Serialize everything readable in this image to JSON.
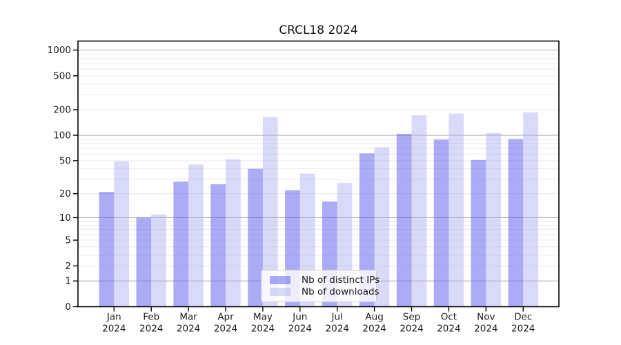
{
  "chart_data": {
    "type": "bar",
    "title": "CRCL18 2024",
    "categories": [
      "Jan",
      "Feb",
      "Mar",
      "Apr",
      "May",
      "Jun",
      "Jul",
      "Aug",
      "Sep",
      "Oct",
      "Nov",
      "Dec"
    ],
    "year": "2024",
    "series": [
      {
        "name": "Nb of distinct IPs",
        "color": "rgba(102,102,238,0.55)",
        "values": [
          21,
          10,
          28,
          26,
          40,
          22,
          16,
          61,
          104,
          89,
          51,
          90
        ]
      },
      {
        "name": "Nb of downloads",
        "color": "rgba(170,170,240,0.45)",
        "values": [
          49,
          11,
          45,
          52,
          164,
          35,
          27,
          72,
          172,
          180,
          106,
          186
        ]
      }
    ],
    "yticks": [
      0,
      1,
      2,
      5,
      10,
      20,
      50,
      100,
      200,
      500,
      1000
    ],
    "yscale": "log1p",
    "ylim": [
      0,
      1275
    ],
    "grid": true,
    "legend_position": "lower center",
    "colors": {
      "grid_major": "#b3b3b3",
      "grid_minor": "#e9e9e9",
      "spine": "#000000",
      "tick_text": "#1c1c1c"
    }
  }
}
